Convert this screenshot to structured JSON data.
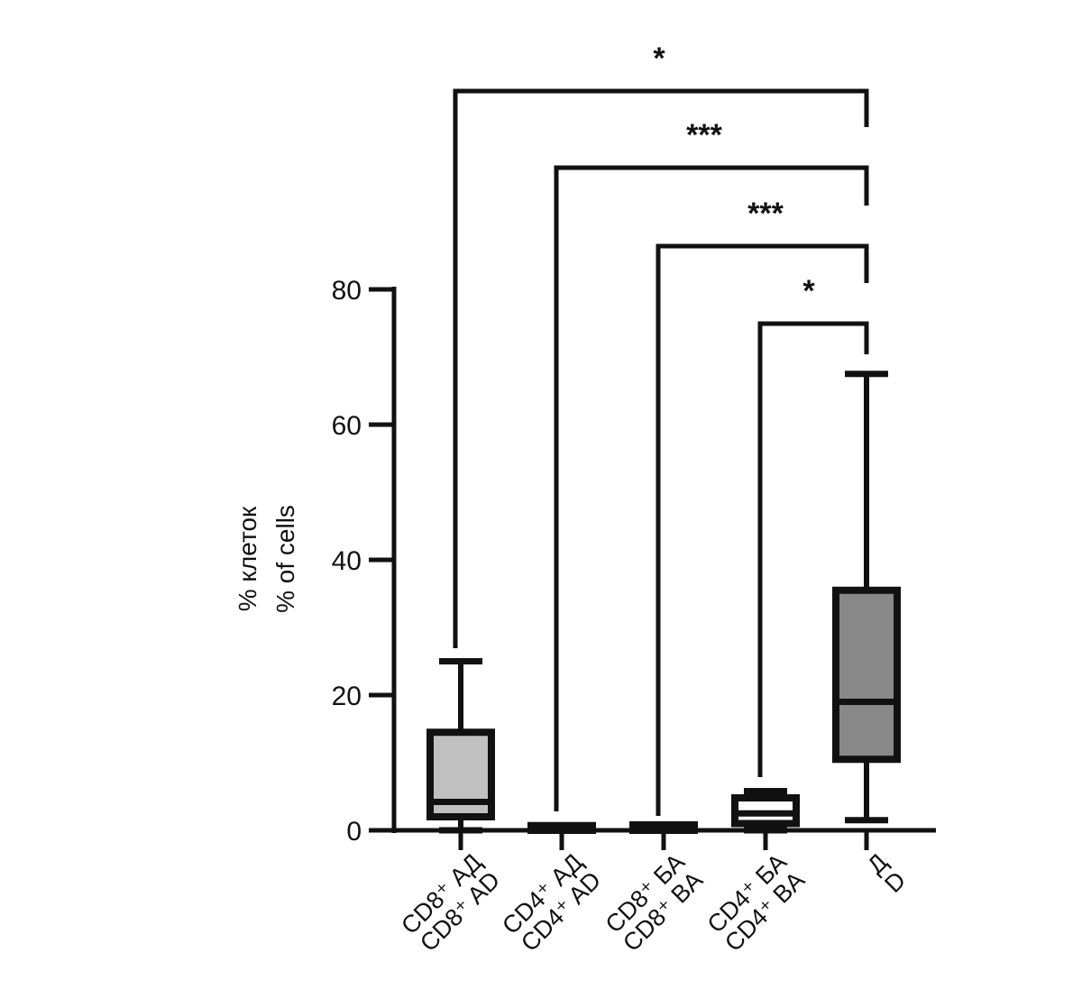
{
  "chart_data": {
    "type": "box",
    "ylabel": [
      "% клеток",
      "% of cells"
    ],
    "ylim": [
      0,
      80
    ],
    "yticks": [
      0,
      20,
      40,
      60,
      80
    ],
    "categories": [
      {
        "ru": "CD8⁺ АД",
        "en": "CD8⁺ AD"
      },
      {
        "ru": "CD4⁺ АД",
        "en": "CD4⁺ AD"
      },
      {
        "ru": "CD8⁺ БА",
        "en": "CD8⁺ BA"
      },
      {
        "ru": "CD4⁺ БА",
        "en": "CD4⁺ BA"
      },
      {
        "ru": "Д",
        "en": "D"
      }
    ],
    "boxes": [
      {
        "min": 0,
        "q1": 2,
        "median": 4.2,
        "q3": 14.5,
        "max": 25,
        "fill": "#c0c0c0"
      },
      {
        "min": 0,
        "q1": 0,
        "median": 0.3,
        "q3": 0.7,
        "max": 0.7,
        "fill": "#c0c0c0"
      },
      {
        "min": 0,
        "q1": 0,
        "median": 0.3,
        "q3": 0.8,
        "max": 0.8,
        "fill": "#c0c0c0"
      },
      {
        "min": 0,
        "q1": 1,
        "median": 2.5,
        "q3": 4.8,
        "max": 5.8,
        "fill": "#ffffff"
      },
      {
        "min": 1.5,
        "q1": 10.5,
        "median": 19,
        "q3": 35.5,
        "max": 67.5,
        "fill": "#888888"
      }
    ],
    "comparisons": [
      {
        "from": 0,
        "to": 4,
        "label": "*"
      },
      {
        "from": 1,
        "to": 4,
        "label": "***"
      },
      {
        "from": 2,
        "to": 4,
        "label": "***"
      },
      {
        "from": 3,
        "to": 4,
        "label": "*"
      }
    ],
    "colors": {
      "ink": "#111111",
      "light_box": "#c0c0c0",
      "dark_box": "#888888"
    }
  }
}
